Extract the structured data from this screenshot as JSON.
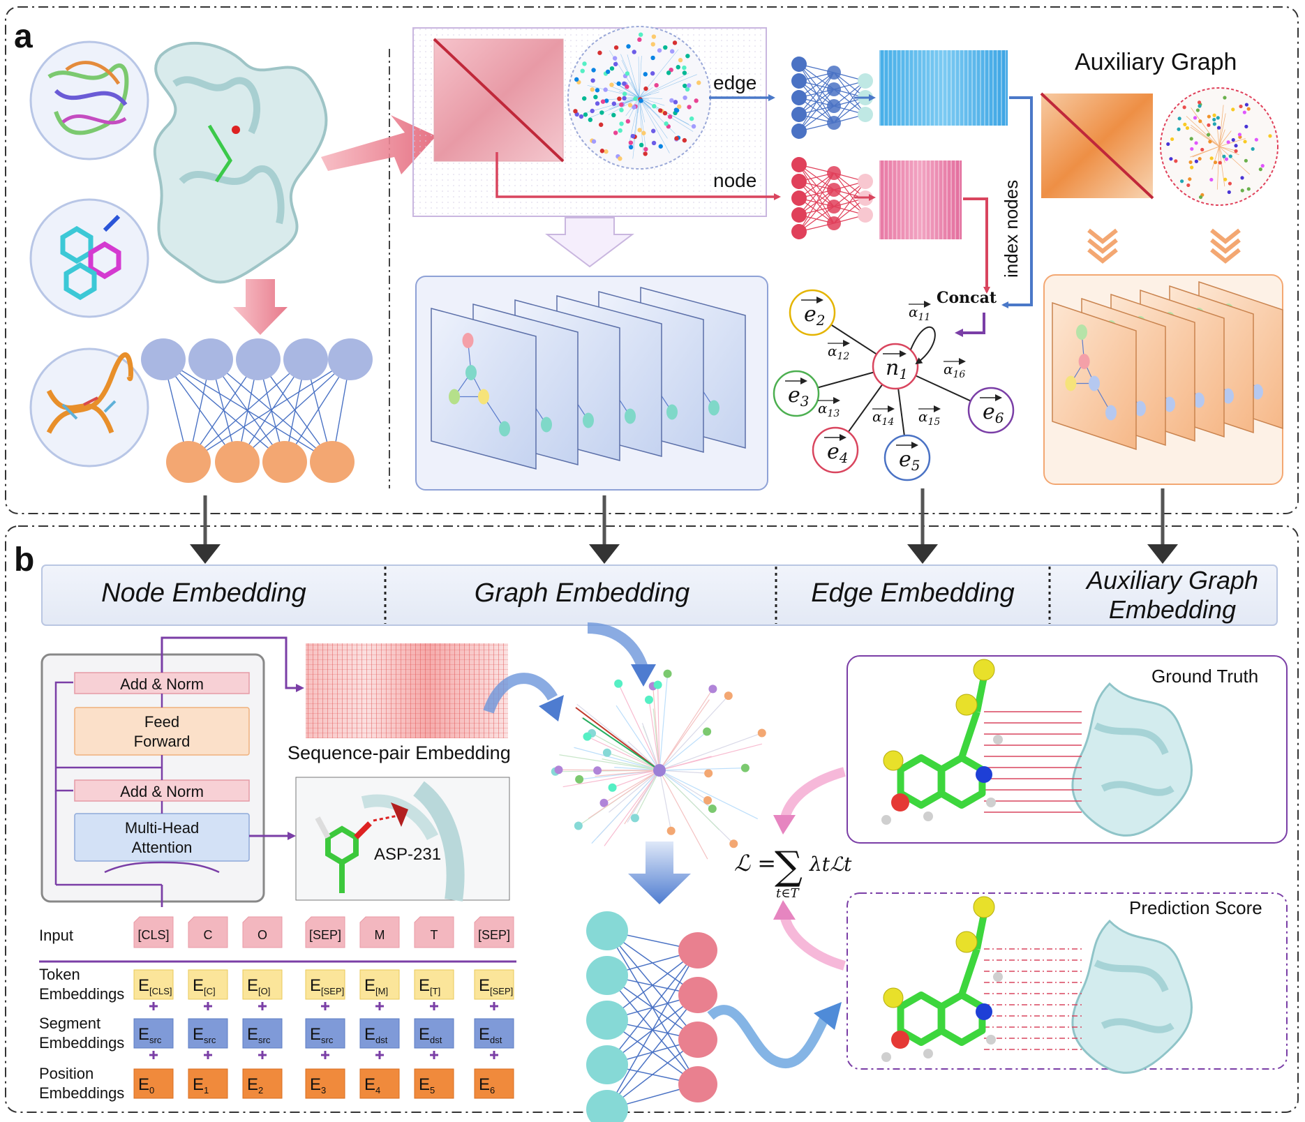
{
  "panel_a": {
    "label": "a",
    "edge_label": "edge",
    "node_label": "node",
    "index_nodes_label": "index nodes",
    "concat_label": "Concat",
    "auxiliary_graph_title": "Auxiliary Graph",
    "attention": {
      "center": "n1",
      "neighbors": [
        "e2",
        "e3",
        "e4",
        "e5",
        "e6"
      ],
      "weights": [
        "α11",
        "α12",
        "α13",
        "α14",
        "α15",
        "α16"
      ]
    }
  },
  "panel_b": {
    "label": "b",
    "embedding_headers": [
      "Node Embedding",
      "Graph Embedding",
      "Edge Embedding",
      "Auxiliary Graph",
      "Embedding"
    ],
    "transformer": {
      "add_norm_top": "Add & Norm",
      "feed_forward_1": "Feed",
      "feed_forward_2": "Forward",
      "add_norm_bottom": "Add & Norm",
      "attention_1": "Multi-Head",
      "attention_2": "Attention"
    },
    "sequence_pair_label": "Sequence-pair Embedding",
    "residue_label": "ASP-231",
    "input_label": "Input",
    "input_tokens": [
      "[CLS]",
      "C",
      "O",
      "[SEP]",
      "M",
      "T",
      "[SEP]"
    ],
    "token_label_1": "Token",
    "token_label_2": "Embeddings",
    "token_embeddings": [
      {
        "base": "E",
        "sub": "[CLS]"
      },
      {
        "base": "E",
        "sub": "[C]"
      },
      {
        "base": "E",
        "sub": "[O]"
      },
      {
        "base": "E",
        "sub": "[SEP]"
      },
      {
        "base": "E",
        "sub": "[M]"
      },
      {
        "base": "E",
        "sub": "[T]"
      },
      {
        "base": "E",
        "sub": "[SEP]"
      }
    ],
    "segment_label_1": "Segment",
    "segment_label_2": "Embeddings",
    "segment_embeddings": [
      {
        "base": "E",
        "sub": "src"
      },
      {
        "base": "E",
        "sub": "src"
      },
      {
        "base": "E",
        "sub": "src"
      },
      {
        "base": "E",
        "sub": "src"
      },
      {
        "base": "E",
        "sub": "dst"
      },
      {
        "base": "E",
        "sub": "dst"
      },
      {
        "base": "E",
        "sub": "dst"
      }
    ],
    "position_label_1": "Position",
    "position_label_2": "Embeddings",
    "position_embeddings": [
      {
        "base": "E",
        "sub": "0"
      },
      {
        "base": "E",
        "sub": "1"
      },
      {
        "base": "E",
        "sub": "2"
      },
      {
        "base": "E",
        "sub": "3"
      },
      {
        "base": "E",
        "sub": "4"
      },
      {
        "base": "E",
        "sub": "5"
      },
      {
        "base": "E",
        "sub": "6"
      }
    ],
    "ground_truth_label": "Ground Truth",
    "prediction_score_label": "Prediction Score",
    "loss_formula_lhs": "ℒ =",
    "loss_formula_sum": "∑",
    "loss_formula_sub": "t∈T",
    "loss_formula_term": "λtℒt"
  },
  "colors": {
    "purple": "#7a3ea6",
    "blue_node": "#4a72c4",
    "red_node": "#e0405a",
    "orange_node": "#f3a772",
    "lavender_node": "#a9b7e2",
    "cyan_node": "#86d9d6",
    "pink_node": "#e9808f",
    "blue_arrow": "#4a78c8",
    "red_arrow": "#d9455e"
  }
}
